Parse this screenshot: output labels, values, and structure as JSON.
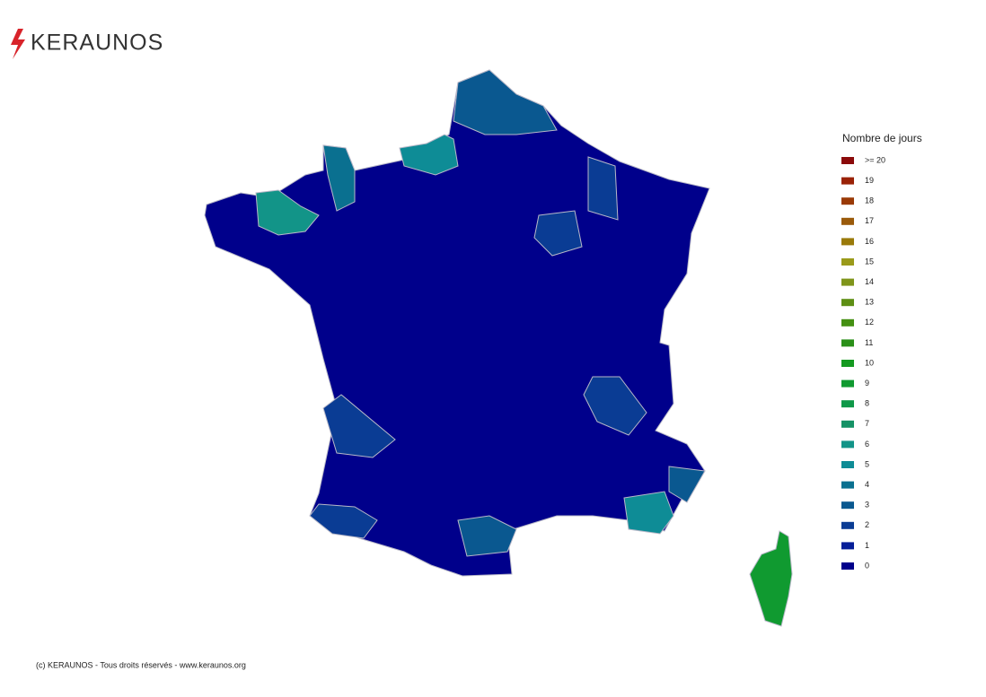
{
  "header": {
    "logo": "KERAUNOS"
  },
  "legend": {
    "title": "Nombre de jours",
    "items": [
      {
        "label": ">= 20",
        "color": "#8B0A0A"
      },
      {
        "label": "19",
        "color": "#9A2206"
      },
      {
        "label": "18",
        "color": "#9A3A06"
      },
      {
        "label": "17",
        "color": "#9A5A0A"
      },
      {
        "label": "16",
        "color": "#9A7A0A"
      },
      {
        "label": "15",
        "color": "#9A9A1A"
      },
      {
        "label": "14",
        "color": "#7F951A"
      },
      {
        "label": "13",
        "color": "#5E8F14"
      },
      {
        "label": "12",
        "color": "#449012"
      },
      {
        "label": "11",
        "color": "#2A9018"
      },
      {
        "label": "10",
        "color": "#149A20"
      },
      {
        "label": "9",
        "color": "#109A30"
      },
      {
        "label": "8",
        "color": "#0E9848"
      },
      {
        "label": "7",
        "color": "#159266"
      },
      {
        "label": "6",
        "color": "#129488"
      },
      {
        "label": "5",
        "color": "#0E8C96"
      },
      {
        "label": "4",
        "color": "#0A7090"
      },
      {
        "label": "3",
        "color": "#0A5890"
      },
      {
        "label": "2",
        "color": "#0A3C94"
      },
      {
        "label": "1",
        "color": "#061E98"
      },
      {
        "label": "0",
        "color": "#00008B"
      }
    ]
  },
  "footer": {
    "copyright": "(c) KERAUNOS - Tous droits réservés - www.keraunos.org"
  }
}
